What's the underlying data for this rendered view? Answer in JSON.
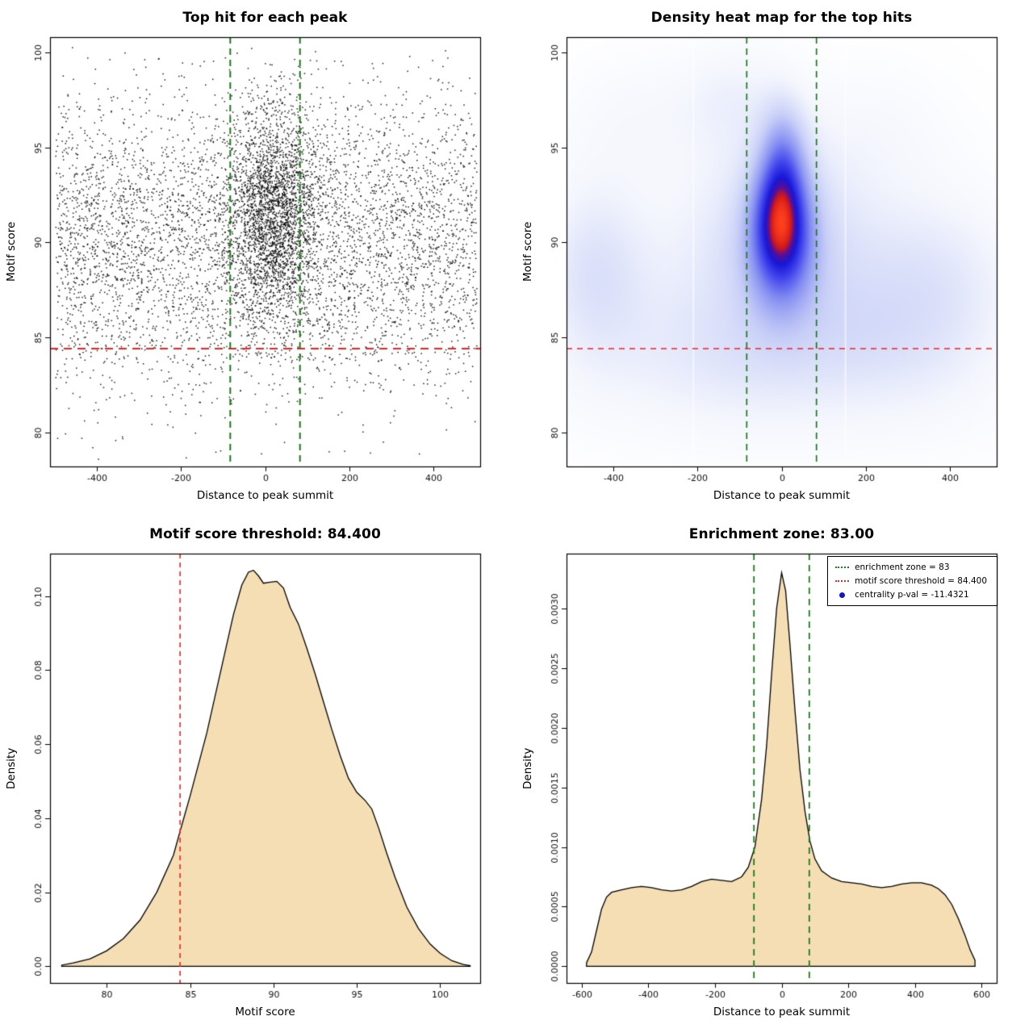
{
  "page": {
    "background": "#ffffff"
  },
  "chart_data": [
    {
      "type": "scatter",
      "title": "Top hit for each peak",
      "xlabel": "Distance to peak summit",
      "ylabel": "Motif score",
      "xlim": [
        -512,
        512
      ],
      "ylim": [
        78.2,
        100.8
      ],
      "xticks": [
        -400,
        -200,
        0,
        200,
        400
      ],
      "xtick_labels": [
        "-400",
        "-200",
        "0",
        "200",
        "400"
      ],
      "yticks": [
        80,
        85,
        90,
        95,
        100
      ],
      "ytick_labels": [
        "80",
        "85",
        "90",
        "95",
        "100"
      ],
      "point_color": "#000000",
      "points_model": {
        "seed": 1337,
        "background": {
          "n": 5000,
          "x_uniform": [
            -500,
            503
          ],
          "y_mean": 90.2,
          "y_sd": 3.9
        },
        "cluster": {
          "n": 2600,
          "x_mean": 18,
          "x_sd": 55,
          "y_mean": 91.4,
          "y_sd": 2.9
        },
        "y_clip": [
          78.6,
          100.3
        ]
      },
      "vlines": {
        "xs": [
          -83,
          83
        ],
        "color": "#1b7a1b",
        "dash": [
          8,
          6
        ],
        "width": 2
      },
      "hlines": {
        "ys": [
          84.4
        ],
        "color": "#ee2222",
        "dash": [
          10,
          7
        ],
        "width": 2
      }
    },
    {
      "type": "heatmap",
      "title": "Density heat map for the top hits",
      "xlabel": "Distance to peak summit",
      "ylabel": "Motif score",
      "xlim": [
        -512,
        512
      ],
      "ylim": [
        78.2,
        100.8
      ],
      "xticks": [
        -400,
        -200,
        0,
        200,
        400
      ],
      "xtick_labels": [
        "-400",
        "-200",
        "0",
        "200",
        "400"
      ],
      "yticks": [
        80,
        85,
        90,
        95,
        100
      ],
      "ytick_labels": [
        "80",
        "85",
        "90",
        "95",
        "100"
      ],
      "colormap": [
        [
          0.0,
          255,
          255,
          255
        ],
        [
          0.1,
          244,
          246,
          253
        ],
        [
          0.28,
          200,
          207,
          247
        ],
        [
          0.48,
          134,
          144,
          241
        ],
        [
          0.66,
          64,
          66,
          236
        ],
        [
          0.78,
          22,
          22,
          214
        ],
        [
          0.855,
          90,
          14,
          150
        ],
        [
          0.91,
          210,
          24,
          24
        ],
        [
          1.0,
          255,
          64,
          28
        ]
      ],
      "blobs": [
        {
          "x": -2,
          "y": 91.4,
          "sx": 46,
          "sy": 2.1,
          "w": 1.0
        },
        {
          "x": 4,
          "y": 94.6,
          "sx": 38,
          "sy": 2.0,
          "w": 0.52
        },
        {
          "x": 0,
          "y": 89.2,
          "sx": 55,
          "sy": 2.3,
          "w": 0.55
        },
        {
          "x": 0,
          "y": 91.0,
          "sx": 140,
          "sy": 4.2,
          "w": 0.3
        },
        {
          "x": 0,
          "y": 87.6,
          "sx": 420,
          "sy": 4.2,
          "w": 0.22
        },
        {
          "x": -445,
          "y": 88.6,
          "sx": 85,
          "sy": 3.4,
          "w": 0.26
        },
        {
          "x": 360,
          "y": 87.2,
          "sx": 130,
          "sy": 3.6,
          "w": 0.22
        },
        {
          "x": -350,
          "y": 96.6,
          "sx": 130,
          "sy": 2.4,
          "w": 0.13
        },
        {
          "x": -120,
          "y": 97.8,
          "sx": 90,
          "sy": 2.0,
          "w": 0.16
        },
        {
          "x": 250,
          "y": 96.2,
          "sx": 120,
          "sy": 2.4,
          "w": 0.1
        },
        {
          "x": 0,
          "y": 81.6,
          "sx": 380,
          "sy": 2.4,
          "w": 0.11
        },
        {
          "x": -150,
          "y": 84.5,
          "sx": 200,
          "sy": 2.2,
          "w": 0.12
        },
        {
          "x": 180,
          "y": 85.0,
          "sx": 120,
          "sy": 2.0,
          "w": 0.1
        }
      ],
      "white_streaks": [
        -210,
        152
      ],
      "vlines": {
        "xs": [
          -83,
          83
        ],
        "color": "#1b7a1b",
        "dash": [
          8,
          6
        ],
        "width": 1.7
      },
      "hlines": {
        "ys": [
          84.4
        ],
        "color": "#ee2222",
        "dash": [
          7,
          6
        ],
        "width": 1.5
      }
    },
    {
      "type": "density",
      "title": "Motif score threshold: 84.400",
      "xlabel": "Motif score",
      "ylabel": "Density",
      "xlim": [
        76.6,
        102.4
      ],
      "ylim": [
        -0.0045,
        0.1115
      ],
      "xticks": [
        80,
        85,
        90,
        95,
        100
      ],
      "xtick_labels": [
        "80",
        "85",
        "90",
        "95",
        "100"
      ],
      "yticks": [
        0.0,
        0.02,
        0.04,
        0.06,
        0.08,
        0.1
      ],
      "ytick_labels": [
        "0.00",
        "0.02",
        "0.04",
        "0.06",
        "0.08",
        "0.10"
      ],
      "fill": "#f5deb3",
      "curve": [
        [
          77.3,
          0.0003
        ],
        [
          78,
          0.0009
        ],
        [
          79,
          0.002
        ],
        [
          80,
          0.0042
        ],
        [
          81,
          0.0075
        ],
        [
          82,
          0.0125
        ],
        [
          83,
          0.02
        ],
        [
          84,
          0.03
        ],
        [
          84.4,
          0.0365
        ],
        [
          85,
          0.046
        ],
        [
          86,
          0.063
        ],
        [
          87,
          0.083
        ],
        [
          87.6,
          0.095
        ],
        [
          88.1,
          0.103
        ],
        [
          88.5,
          0.1065
        ],
        [
          88.8,
          0.107
        ],
        [
          89.1,
          0.1055
        ],
        [
          89.4,
          0.1035
        ],
        [
          89.8,
          0.1038
        ],
        [
          90.2,
          0.104
        ],
        [
          90.6,
          0.1022
        ],
        [
          91,
          0.097
        ],
        [
          91.5,
          0.0925
        ],
        [
          92,
          0.086
        ],
        [
          92.5,
          0.079
        ],
        [
          93,
          0.0715
        ],
        [
          93.5,
          0.064
        ],
        [
          94,
          0.057
        ],
        [
          94.5,
          0.0508
        ],
        [
          95,
          0.047
        ],
        [
          95.5,
          0.0448
        ],
        [
          95.9,
          0.0425
        ],
        [
          96.3,
          0.0375
        ],
        [
          96.8,
          0.0305
        ],
        [
          97.3,
          0.024
        ],
        [
          98,
          0.016
        ],
        [
          98.7,
          0.0102
        ],
        [
          99.4,
          0.006
        ],
        [
          100,
          0.0035
        ],
        [
          100.7,
          0.0015
        ],
        [
          101.4,
          0.0005
        ],
        [
          101.8,
          0.0002
        ]
      ],
      "vlines": {
        "xs": [
          84.4
        ],
        "color": "#ee2222",
        "dash": [
          6,
          5
        ],
        "width": 1.6
      }
    },
    {
      "type": "density",
      "title": "Enrichment zone: 83.00",
      "xlabel": "Distance to peak summit",
      "ylabel": "Density",
      "xlim": [
        -645,
        645
      ],
      "ylim": [
        -0.00014,
        0.00346
      ],
      "xticks": [
        -600,
        -400,
        -200,
        0,
        200,
        400,
        600
      ],
      "xtick_labels": [
        "-600",
        "-400",
        "-200",
        "0",
        "200",
        "400",
        "600"
      ],
      "yticks": [
        0.0,
        0.0005,
        0.001,
        0.0015,
        0.002,
        0.0025,
        0.003
      ],
      "ytick_labels": [
        "0.0000",
        "0.0005",
        "0.0010",
        "0.0015",
        "0.0020",
        "0.0025",
        "0.0030"
      ],
      "fill": "#f5deb3",
      "curve": [
        [
          -585,
          3e-05
        ],
        [
          -570,
          0.00012
        ],
        [
          -555,
          0.0003
        ],
        [
          -540,
          0.00048
        ],
        [
          -525,
          0.00058
        ],
        [
          -510,
          0.00062
        ],
        [
          -480,
          0.00064
        ],
        [
          -450,
          0.00066
        ],
        [
          -420,
          0.00067
        ],
        [
          -390,
          0.00066
        ],
        [
          -360,
          0.00064
        ],
        [
          -330,
          0.00063
        ],
        [
          -300,
          0.00064
        ],
        [
          -270,
          0.00067
        ],
        [
          -240,
          0.00071
        ],
        [
          -210,
          0.00073
        ],
        [
          -180,
          0.00072
        ],
        [
          -150,
          0.00071
        ],
        [
          -120,
          0.00075
        ],
        [
          -100,
          0.00083
        ],
        [
          -80,
          0.001
        ],
        [
          -60,
          0.0014
        ],
        [
          -45,
          0.00185
        ],
        [
          -30,
          0.00245
        ],
        [
          -15,
          0.003
        ],
        [
          0,
          0.0033
        ],
        [
          12,
          0.00315
        ],
        [
          25,
          0.0027
        ],
        [
          40,
          0.00215
        ],
        [
          55,
          0.00165
        ],
        [
          70,
          0.0013
        ],
        [
          85,
          0.00105
        ],
        [
          100,
          0.0009
        ],
        [
          120,
          0.0008
        ],
        [
          150,
          0.00074
        ],
        [
          180,
          0.00071
        ],
        [
          210,
          0.0007
        ],
        [
          240,
          0.00069
        ],
        [
          270,
          0.00067
        ],
        [
          300,
          0.00066
        ],
        [
          330,
          0.00067
        ],
        [
          360,
          0.00069
        ],
        [
          390,
          0.0007
        ],
        [
          420,
          0.0007
        ],
        [
          450,
          0.00068
        ],
        [
          470,
          0.00065
        ],
        [
          490,
          0.0006
        ],
        [
          510,
          0.00052
        ],
        [
          530,
          0.0004
        ],
        [
          550,
          0.00026
        ],
        [
          565,
          0.00014
        ],
        [
          580,
          5e-05
        ]
      ],
      "vlines": {
        "xs": [
          -83,
          83
        ],
        "color": "#1b7a1b",
        "dash": [
          8,
          6
        ],
        "width": 1.8
      },
      "legend": {
        "items": [
          {
            "label": "enrichment zone = 83",
            "marker": "dotted-line",
            "color": "#1b7a1b"
          },
          {
            "label": "motif score threshold = 84.400",
            "marker": "dotted-line",
            "color": "#ee2222"
          },
          {
            "label": "centrality p-val = -11.4321",
            "marker": "dot",
            "color": "#1414c8"
          }
        ]
      }
    }
  ]
}
